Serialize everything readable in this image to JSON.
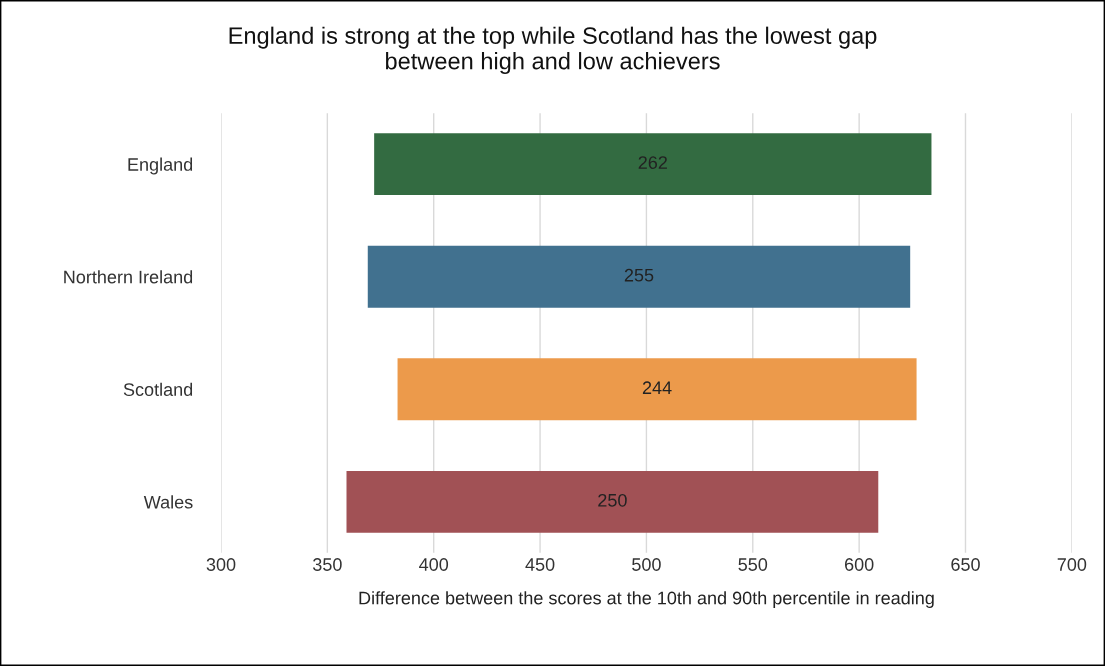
{
  "chart_data": {
    "type": "bar",
    "orientation": "horizontal",
    "title": "England is strong at the top while Scotland has the lowest gap\nbetween high and low achievers",
    "xlabel": "Difference between the scores at the 10th and 90th percentile in reading",
    "categories": [
      "England",
      "Northern Ireland",
      "Scotland",
      "Wales"
    ],
    "base": [
      372,
      369,
      383,
      359
    ],
    "values": [
      262,
      255,
      244,
      250
    ],
    "colors": [
      "#336b41",
      "#41718f",
      "#ec9a4b",
      "#a15155"
    ],
    "data_labels": true,
    "xlim": [
      300,
      700
    ],
    "xticks": [
      300,
      350,
      400,
      450,
      500,
      550,
      600,
      650,
      700
    ],
    "grid": "x",
    "legend": false
  }
}
